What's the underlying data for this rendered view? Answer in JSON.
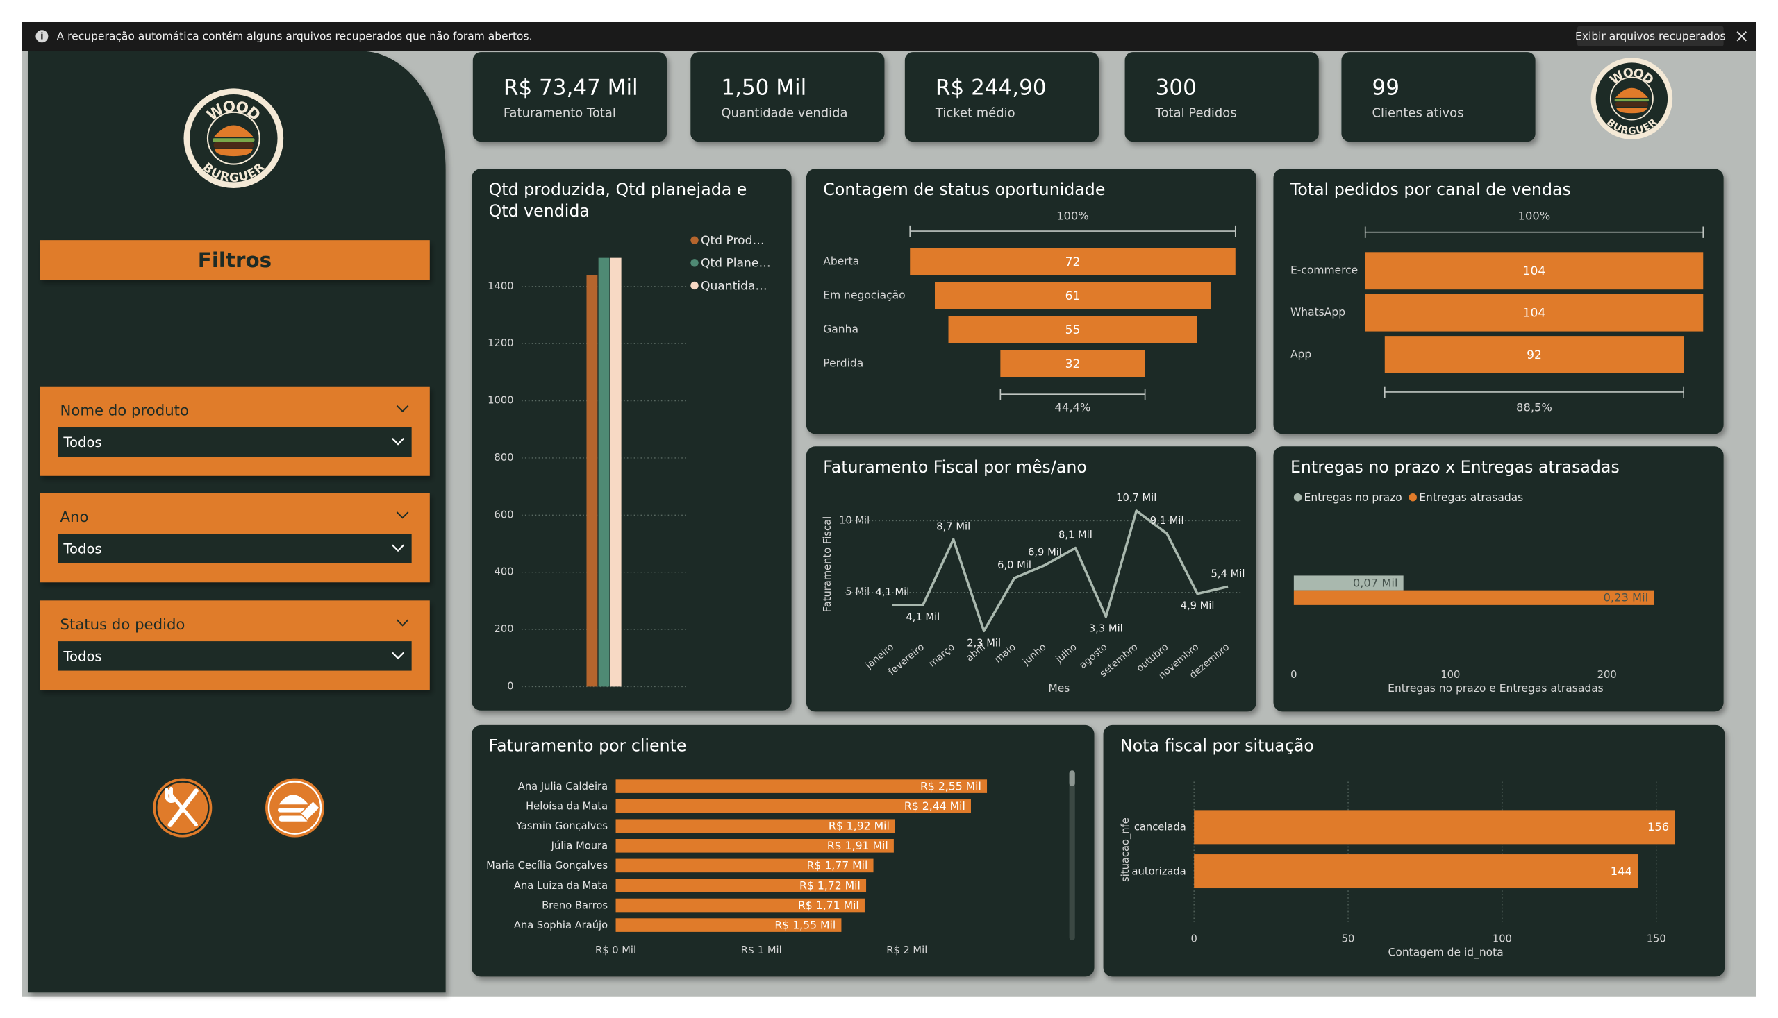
{
  "notification": {
    "message": "A recuperação automática contém alguns arquivos recuperados que não foram abertos.",
    "button": "Exibir arquivos recuperados"
  },
  "logo": {
    "top": "WOOD",
    "bottom": "BURGUER"
  },
  "filters": {
    "title": "Filtros",
    "items": [
      {
        "label": "Nome do produto",
        "value": "Todos"
      },
      {
        "label": "Ano",
        "value": "Todos"
      },
      {
        "label": "Status do pedido",
        "value": "Todos"
      }
    ]
  },
  "kpis": [
    {
      "value": "R$ 73,47 Mil",
      "label": "Faturamento Total"
    },
    {
      "value": "1,50 Mil",
      "label": "Quantidade vendida"
    },
    {
      "value": "R$ 244,90",
      "label": "Ticket médio"
    },
    {
      "value": "300",
      "label": "Total Pedidos"
    },
    {
      "value": "99",
      "label": "Clientes ativos"
    }
  ],
  "chart_data": [
    {
      "type": "bar",
      "title": "Qtd produzida, Qtd planejada e Qtd vendida",
      "categories": [
        null
      ],
      "series": [
        {
          "name": "Qtd Prod…",
          "color": "#b5652d",
          "values": [
            1440
          ]
        },
        {
          "name": "Qtd Plane…",
          "color": "#4f8a74",
          "values": [
            1500
          ]
        },
        {
          "name": "Quantida…",
          "color": "#f7d9c4",
          "values": [
            1500
          ]
        }
      ],
      "ylim": [
        0,
        1550
      ],
      "yticks": [
        0,
        200,
        400,
        600,
        800,
        1000,
        1200,
        1400
      ],
      "grid": true,
      "legend": "top-right"
    },
    {
      "type": "funnel",
      "title": "Contagem de status oportunidade",
      "categories": [
        "Aberta",
        "Em negociação",
        "Ganha",
        "Perdida"
      ],
      "values": [
        72,
        61,
        55,
        32
      ],
      "color": "#e07b2a",
      "top_label": "100%",
      "bottom_label": "44,4%"
    },
    {
      "type": "funnel",
      "title": "Total pedidos por canal de vendas",
      "categories": [
        "E-commerce",
        "WhatsApp",
        "App"
      ],
      "values": [
        104,
        104,
        92
      ],
      "color": "#e07b2a",
      "top_label": "100%",
      "bottom_label": "88,5%"
    },
    {
      "type": "line",
      "title": "Faturamento Fiscal por mês/ano",
      "x_label": "Mes",
      "y_label": "Faturamento Fiscal",
      "categories": [
        "janeiro",
        "fevereiro",
        "março",
        "abril",
        "maio",
        "junho",
        "julho",
        "agosto",
        "setembro",
        "outubro",
        "novembro",
        "dezembro"
      ],
      "values": [
        4100,
        4100,
        8700,
        2300,
        6000,
        6900,
        8100,
        3300,
        10700,
        9100,
        4900,
        5400
      ],
      "value_labels": [
        "4,1 Mil",
        "4,1 Mil",
        "8,7 Mil",
        "2,3 Mil",
        "6,0 Mil",
        "6,9 Mil",
        "8,1 Mil",
        "3,3 Mil",
        "10,7 Mil",
        "9,1 Mil",
        "4,9 Mil",
        "5,4 Mil"
      ],
      "color": "#a9b8ae",
      "ylim": [
        0,
        11000
      ],
      "yticks": [
        {
          "value": 5000,
          "label": "5 Mil"
        },
        {
          "value": 10000,
          "label": "10 Mil"
        }
      ],
      "grid": true
    },
    {
      "type": "bar",
      "orientation": "horizontal",
      "title": "Entregas no prazo x Entregas atrasadas",
      "x_label": "Entregas no prazo e Entregas atrasadas",
      "categories": [
        null
      ],
      "series": [
        {
          "name": "Entregas no prazo",
          "color": "#a9b8ae",
          "values": [
            70
          ],
          "value_labels": [
            "0,07 Mil"
          ]
        },
        {
          "name": "Entregas atrasadas",
          "color": "#e07b2a",
          "values": [
            230
          ],
          "value_labels": [
            "0,23 Mil"
          ]
        }
      ],
      "xlim": [
        0,
        260
      ],
      "xticks": [
        0,
        100,
        200
      ],
      "grid": false,
      "legend": "top-left"
    },
    {
      "type": "bar",
      "orientation": "horizontal",
      "title": "Faturamento por cliente",
      "categories": [
        "Ana Julia Caldeira",
        "Heloísa da Mata",
        "Yasmin Gonçalves",
        "Júlia Moura",
        "Maria Cecília Gonçalves",
        "Ana Luiza da Mata",
        "Breno Barros",
        "Ana Sophia Araújo"
      ],
      "values": [
        2550,
        2440,
        1920,
        1910,
        1770,
        1720,
        1710,
        1550
      ],
      "value_labels": [
        "R$ 2,55 Mil",
        "R$ 2,44 Mil",
        "R$ 1,92 Mil",
        "R$ 1,91 Mil",
        "R$ 1,77 Mil",
        "R$ 1,72 Mil",
        "R$ 1,71 Mil",
        "R$ 1,55 Mil"
      ],
      "color": "#e07b2a",
      "xlim": [
        0,
        3100
      ],
      "xticks": [
        {
          "value": 0,
          "label": "R$ 0 Mil"
        },
        {
          "value": 1000,
          "label": "R$ 1 Mil"
        },
        {
          "value": 2000,
          "label": "R$ 2 Mil"
        }
      ],
      "grid": false
    },
    {
      "type": "bar",
      "orientation": "horizontal",
      "title": "Nota fiscal por situação",
      "x_label": "Contagem de id_nota",
      "y_label": "situacao_nfe",
      "categories": [
        "cancelada",
        "autorizada"
      ],
      "values": [
        156,
        144
      ],
      "color": "#e07b2a",
      "xlim": [
        0,
        170
      ],
      "xticks": [
        0,
        50,
        100,
        150
      ],
      "grid": true
    }
  ]
}
